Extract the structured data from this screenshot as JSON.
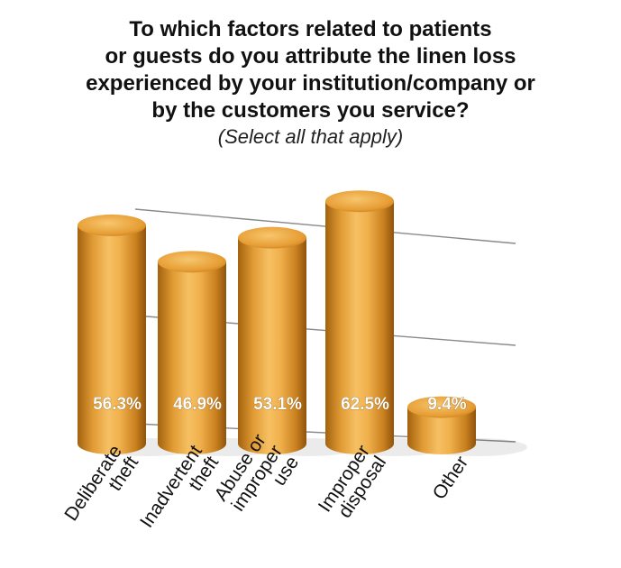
{
  "title_lines": [
    "To which factors related to patients",
    "or guests do you attribute the linen loss",
    "experienced by your institution/company or",
    "by the customers you service?"
  ],
  "subtitle": "(Select all that apply)",
  "chart_data": {
    "type": "bar",
    "style": "3d-cylinder",
    "categories": [
      [
        "Deliberate",
        "theft"
      ],
      [
        "Inadvertent",
        "theft"
      ],
      [
        "Abuse or",
        "improper",
        "use"
      ],
      [
        "Improper",
        "disposal"
      ],
      [
        "Other"
      ]
    ],
    "values": [
      56.3,
      46.9,
      53.1,
      62.5,
      9.4
    ],
    "value_labels": [
      "56.3%",
      "46.9%",
      "53.1%",
      "62.5%",
      "9.4%"
    ],
    "grid": true,
    "bar_color": "#e8a33a",
    "label_color": "#ffffff"
  }
}
